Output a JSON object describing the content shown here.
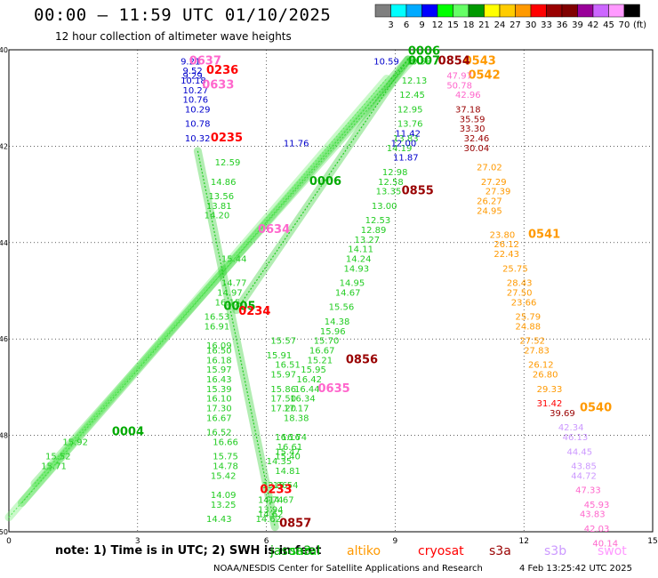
{
  "header": {
    "title": "00:00 – 11:59 UTC 01/10/2025",
    "subtitle": "12 hour collection of altimeter wave heights"
  },
  "colorbar": {
    "unit": "(ft)",
    "colors": [
      "#7f7f7f",
      "#00ffff",
      "#00aaff",
      "#0000ff",
      "#00ff00",
      "#66ff66",
      "#009900",
      "#ffff00",
      "#ffcc00",
      "#ff9900",
      "#ff0000",
      "#990000",
      "#800000",
      "#990099",
      "#cc66ff",
      "#ff99ff",
      "#000000"
    ],
    "labels": [
      "3",
      "6",
      "9",
      "12",
      "15",
      "18",
      "21",
      "24",
      "27",
      "30",
      "33",
      "36",
      "39",
      "42",
      "45",
      "70"
    ]
  },
  "legend": [
    {
      "name": "jason3",
      "color": "#00aa00"
    },
    {
      "name": "saral",
      "color": "#00cc00"
    },
    {
      "name": "altiko",
      "color": "#ff9900"
    },
    {
      "name": "cryosat",
      "color": "#ff0000"
    },
    {
      "name": "s3a",
      "color": "#990000"
    },
    {
      "name": "s3b",
      "color": "#cc99ff"
    },
    {
      "name": "swot",
      "color": "#ff99ff"
    }
  ],
  "note": "note: 1) Time is in UTC; 2) SWH is in feet",
  "credit": "NOAA/NESDIS Center for Satellite Applications and Research",
  "stamp": "4 Feb 13:25:42 UTC 2025",
  "chart_data": {
    "type": "scatter",
    "title": "00:00 – 11:59 UTC 01/10/2025",
    "subtitle": "12 hour collection of altimeter wave heights",
    "xlim": [
      0,
      15
    ],
    "ylim": [
      -50,
      -40
    ],
    "xticks": [
      "0",
      "3",
      "6",
      "9",
      "12",
      "15"
    ],
    "yticks": [
      "-40",
      "-42",
      "-44",
      "-46",
      "-48",
      "-50"
    ],
    "grid": true,
    "legend_placement": "bottom",
    "series": [
      {
        "name": "jason3",
        "color": "#00aa00",
        "points": [
          {
            "x": 9.3,
            "y": -40.1,
            "v": "0006"
          },
          {
            "x": 9.3,
            "y": -40.3,
            "v": "0007"
          },
          {
            "x": 7.0,
            "y": -42.8,
            "v": "0006"
          },
          {
            "x": 5.0,
            "y": -45.4,
            "v": "0005"
          },
          {
            "x": 2.4,
            "y": -48.0,
            "v": "0004"
          }
        ]
      },
      {
        "name": "saral",
        "color": "#22cc22",
        "points": [
          {
            "x": 9.25,
            "y": -40.3,
            "v": "10.58"
          },
          {
            "x": 9.15,
            "y": -40.7,
            "v": "12.13"
          },
          {
            "x": 9.1,
            "y": -41.0,
            "v": "12.45"
          },
          {
            "x": 9.05,
            "y": -41.3,
            "v": "12.95"
          },
          {
            "x": 9.05,
            "y": -41.6,
            "v": "13.76"
          },
          {
            "x": 8.95,
            "y": -41.9,
            "v": "13.83"
          },
          {
            "x": 8.8,
            "y": -42.1,
            "v": "14.19"
          },
          {
            "x": 8.7,
            "y": -42.6,
            "v": "12.98"
          },
          {
            "x": 8.6,
            "y": -42.8,
            "v": "12.58"
          },
          {
            "x": 8.55,
            "y": -43.0,
            "v": "13.35"
          },
          {
            "x": 8.45,
            "y": -43.3,
            "v": "13.00"
          },
          {
            "x": 8.3,
            "y": -43.6,
            "v": "12.53"
          },
          {
            "x": 8.2,
            "y": -43.8,
            "v": "12.89"
          },
          {
            "x": 8.05,
            "y": -44.0,
            "v": "13.27"
          },
          {
            "x": 7.9,
            "y": -44.2,
            "v": "14.11"
          },
          {
            "x": 7.85,
            "y": -44.4,
            "v": "14.24"
          },
          {
            "x": 7.8,
            "y": -44.6,
            "v": "14.93"
          },
          {
            "x": 7.7,
            "y": -44.9,
            "v": "14.95"
          },
          {
            "x": 7.6,
            "y": -45.1,
            "v": "14.67"
          },
          {
            "x": 7.45,
            "y": -45.4,
            "v": "15.56"
          },
          {
            "x": 7.35,
            "y": -45.7,
            "v": "14.38"
          },
          {
            "x": 7.25,
            "y": -45.9,
            "v": "15.96"
          },
          {
            "x": 7.1,
            "y": -46.1,
            "v": "15.70"
          },
          {
            "x": 7.0,
            "y": -46.3,
            "v": "16.67"
          },
          {
            "x": 6.95,
            "y": -46.5,
            "v": "15.21"
          },
          {
            "x": 6.8,
            "y": -46.7,
            "v": "15.95"
          },
          {
            "x": 6.7,
            "y": -46.9,
            "v": "16.42"
          },
          {
            "x": 6.65,
            "y": -47.1,
            "v": "16.44"
          },
          {
            "x": 6.55,
            "y": -47.3,
            "v": "16.34"
          },
          {
            "x": 6.4,
            "y": -47.5,
            "v": "17.17"
          },
          {
            "x": 6.4,
            "y": -47.7,
            "v": "18.38"
          },
          {
            "x": 6.35,
            "y": -48.1,
            "v": "16.74"
          },
          {
            "x": 6.25,
            "y": -48.3,
            "v": "16.61"
          },
          {
            "x": 6.2,
            "y": -48.5,
            "v": "15.40"
          },
          {
            "x": 6.2,
            "y": -48.8,
            "v": "14.81"
          },
          {
            "x": 6.15,
            "y": -49.1,
            "v": "15.54"
          },
          {
            "x": 6.05,
            "y": -49.4,
            "v": "14.67"
          },
          {
            "x": 5.8,
            "y": -49.6,
            "v": "13.94"
          },
          {
            "x": 5.75,
            "y": -49.8,
            "v": "14.62"
          },
          {
            "x": 4.8,
            "y": -42.4,
            "v": "12.59"
          },
          {
            "x": 4.7,
            "y": -42.8,
            "v": "14.86"
          },
          {
            "x": 4.65,
            "y": -43.1,
            "v": "13.56"
          },
          {
            "x": 4.6,
            "y": -43.3,
            "v": "13.81"
          },
          {
            "x": 4.55,
            "y": -43.5,
            "v": "14.20"
          },
          {
            "x": 4.95,
            "y": -44.4,
            "v": "15.44"
          },
          {
            "x": 4.95,
            "y": -44.9,
            "v": "14.77"
          },
          {
            "x": 4.85,
            "y": -45.1,
            "v": "14.97"
          },
          {
            "x": 4.8,
            "y": -45.3,
            "v": "16.15"
          },
          {
            "x": 4.55,
            "y": -45.6,
            "v": "16.53"
          },
          {
            "x": 4.55,
            "y": -45.8,
            "v": "16.91"
          },
          {
            "x": 4.6,
            "y": -46.2,
            "v": "16.09"
          },
          {
            "x": 4.6,
            "y": -46.3,
            "v": "16.50"
          },
          {
            "x": 4.6,
            "y": -46.5,
            "v": "16.18"
          },
          {
            "x": 4.6,
            "y": -46.7,
            "v": "15.97"
          },
          {
            "x": 4.6,
            "y": -46.9,
            "v": "16.43"
          },
          {
            "x": 4.6,
            "y": -47.1,
            "v": "15.39"
          },
          {
            "x": 4.6,
            "y": -47.3,
            "v": "16.10"
          },
          {
            "x": 4.6,
            "y": -47.5,
            "v": "17.30"
          },
          {
            "x": 4.6,
            "y": -47.7,
            "v": "16.67"
          },
          {
            "x": 4.6,
            "y": -48.0,
            "v": "16.52"
          },
          {
            "x": 4.75,
            "y": -48.2,
            "v": "16.66"
          },
          {
            "x": 4.75,
            "y": -48.5,
            "v": "15.75"
          },
          {
            "x": 4.75,
            "y": -48.7,
            "v": "14.78"
          },
          {
            "x": 4.7,
            "y": -48.9,
            "v": "15.42"
          },
          {
            "x": 4.7,
            "y": -49.3,
            "v": "14.09"
          },
          {
            "x": 4.7,
            "y": -49.5,
            "v": "13.25"
          },
          {
            "x": 4.6,
            "y": -49.8,
            "v": "14.43"
          },
          {
            "x": 6.1,
            "y": -46.1,
            "v": "15.57"
          },
          {
            "x": 6.0,
            "y": -46.4,
            "v": "15.91"
          },
          {
            "x": 6.2,
            "y": -46.6,
            "v": "16.51"
          },
          {
            "x": 6.1,
            "y": -46.8,
            "v": "15.97"
          },
          {
            "x": 6.1,
            "y": -47.1,
            "v": "15.86"
          },
          {
            "x": 6.1,
            "y": -47.3,
            "v": "17.50"
          },
          {
            "x": 6.1,
            "y": -47.5,
            "v": "17.20"
          },
          {
            "x": 6.2,
            "y": -48.1,
            "v": "16.16"
          },
          {
            "x": 6.2,
            "y": -48.4,
            "v": "15.47"
          },
          {
            "x": 6.0,
            "y": -48.6,
            "v": "14.35"
          },
          {
            "x": 5.9,
            "y": -49.1,
            "v": "13.86"
          },
          {
            "x": 5.8,
            "y": -49.4,
            "v": "14.74"
          },
          {
            "x": 5.8,
            "y": -49.7,
            "v": "14.62"
          },
          {
            "x": 0.85,
            "y": -48.5,
            "v": "15.52"
          },
          {
            "x": 0.75,
            "y": -48.7,
            "v": "15.71"
          },
          {
            "x": 1.25,
            "y": -48.2,
            "v": "15.92"
          }
        ]
      },
      {
        "name": "saral-blue",
        "color": "#0000cc",
        "points": [
          {
            "x": 4.0,
            "y": -40.3,
            "v": "9.21"
          },
          {
            "x": 4.05,
            "y": -40.5,
            "v": "9.52"
          },
          {
            "x": 4.05,
            "y": -40.6,
            "v": "9.29"
          },
          {
            "x": 4.0,
            "y": -40.7,
            "v": "10.18"
          },
          {
            "x": 4.05,
            "y": -40.9,
            "v": "10.27"
          },
          {
            "x": 4.05,
            "y": -41.1,
            "v": "10.76"
          },
          {
            "x": 4.1,
            "y": -41.3,
            "v": "10.29"
          },
          {
            "x": 4.1,
            "y": -41.6,
            "v": "10.78"
          },
          {
            "x": 4.1,
            "y": -41.9,
            "v": "10.32"
          },
          {
            "x": 9.0,
            "y": -41.8,
            "v": "11.42"
          },
          {
            "x": 8.9,
            "y": -42.0,
            "v": "12.00"
          },
          {
            "x": 8.95,
            "y": -42.3,
            "v": "11.87"
          },
          {
            "x": 6.4,
            "y": -42.0,
            "v": "11.76"
          },
          {
            "x": 8.5,
            "y": -40.3,
            "v": "10.59"
          }
        ]
      },
      {
        "name": "altiko",
        "color": "#ff9900",
        "points": [
          {
            "x": 10.6,
            "y": -40.3,
            "v": "0543"
          },
          {
            "x": 10.7,
            "y": -40.6,
            "v": "0542"
          },
          {
            "x": 12.1,
            "y": -43.9,
            "v": "0541"
          },
          {
            "x": 13.3,
            "y": -47.5,
            "v": "0540"
          },
          {
            "x": 10.9,
            "y": -42.5,
            "v": "27.02"
          },
          {
            "x": 11.0,
            "y": -42.8,
            "v": "27.29"
          },
          {
            "x": 11.1,
            "y": -43.0,
            "v": "27.39"
          },
          {
            "x": 10.9,
            "y": -43.2,
            "v": "26.27"
          },
          {
            "x": 10.9,
            "y": -43.4,
            "v": "24.95"
          },
          {
            "x": 11.2,
            "y": -43.9,
            "v": "23.80"
          },
          {
            "x": 11.3,
            "y": -44.1,
            "v": "26.12"
          },
          {
            "x": 11.3,
            "y": -44.3,
            "v": "22.43"
          },
          {
            "x": 11.5,
            "y": -44.6,
            "v": "25.75"
          },
          {
            "x": 11.6,
            "y": -44.9,
            "v": "28.43"
          },
          {
            "x": 11.6,
            "y": -45.1,
            "v": "27.50"
          },
          {
            "x": 11.7,
            "y": -45.3,
            "v": "23.66"
          },
          {
            "x": 11.8,
            "y": -45.6,
            "v": "25.79"
          },
          {
            "x": 11.8,
            "y": -45.8,
            "v": "24.88"
          },
          {
            "x": 11.9,
            "y": -46.1,
            "v": "27.52"
          },
          {
            "x": 12.0,
            "y": -46.3,
            "v": "27.83"
          },
          {
            "x": 12.1,
            "y": -46.6,
            "v": "26.12"
          },
          {
            "x": 12.2,
            "y": -46.8,
            "v": "26.80"
          },
          {
            "x": 12.3,
            "y": -47.1,
            "v": "29.33"
          }
        ]
      },
      {
        "name": "cryosat",
        "color": "#ff0000",
        "points": [
          {
            "x": 4.6,
            "y": -40.5,
            "v": "0236"
          },
          {
            "x": 4.7,
            "y": -41.9,
            "v": "0235"
          },
          {
            "x": 5.35,
            "y": -45.5,
            "v": "0234"
          },
          {
            "x": 5.85,
            "y": -49.2,
            "v": "0233"
          },
          {
            "x": 12.3,
            "y": -47.4,
            "v": "31.42"
          }
        ]
      },
      {
        "name": "s3a",
        "color": "#990000",
        "points": [
          {
            "x": 10.0,
            "y": -40.3,
            "v": "0854"
          },
          {
            "x": 9.15,
            "y": -43.0,
            "v": "0855"
          },
          {
            "x": 7.85,
            "y": -46.5,
            "v": "0856"
          },
          {
            "x": 6.3,
            "y": -49.9,
            "v": "0857"
          },
          {
            "x": 10.4,
            "y": -41.3,
            "v": "37.18"
          },
          {
            "x": 10.5,
            "y": -41.5,
            "v": "35.59"
          },
          {
            "x": 10.5,
            "y": -41.7,
            "v": "33.30"
          },
          {
            "x": 10.6,
            "y": -41.9,
            "v": "32.46"
          },
          {
            "x": 10.6,
            "y": -42.1,
            "v": "30.04"
          },
          {
            "x": 12.6,
            "y": -47.6,
            "v": "39.69"
          }
        ]
      },
      {
        "name": "s3b",
        "color": "#cc99ff",
        "points": [
          {
            "x": 12.8,
            "y": -47.9,
            "v": "42.34"
          },
          {
            "x": 12.9,
            "y": -48.1,
            "v": "46.13"
          },
          {
            "x": 13.0,
            "y": -48.4,
            "v": "44.45"
          },
          {
            "x": 13.1,
            "y": -48.7,
            "v": "43.85"
          },
          {
            "x": 13.1,
            "y": -48.9,
            "v": "44.72"
          }
        ]
      },
      {
        "name": "swot",
        "color": "#ff66cc",
        "points": [
          {
            "x": 4.2,
            "y": -40.3,
            "v": "0637"
          },
          {
            "x": 4.5,
            "y": -40.8,
            "v": "0633"
          },
          {
            "x": 5.8,
            "y": -43.8,
            "v": "0634"
          },
          {
            "x": 7.2,
            "y": -47.1,
            "v": "0635"
          },
          {
            "x": 10.2,
            "y": -40.6,
            "v": "47.97"
          },
          {
            "x": 10.2,
            "y": -40.8,
            "v": "50.78"
          },
          {
            "x": 10.4,
            "y": -41.0,
            "v": "42.96"
          },
          {
            "x": 13.2,
            "y": -49.2,
            "v": "47.33"
          },
          {
            "x": 13.4,
            "y": -49.5,
            "v": "45.93"
          },
          {
            "x": 13.3,
            "y": -49.7,
            "v": "43.83"
          },
          {
            "x": 13.4,
            "y": -50.0,
            "v": "42.03"
          },
          {
            "x": 13.6,
            "y": -50.3,
            "v": "40.14"
          }
        ]
      }
    ],
    "tracks": [
      {
        "color": "#22cc22",
        "from": [
          0.3,
          -49.4
        ],
        "to": [
          9.3,
          -40.2
        ]
      },
      {
        "color": "#44dd44",
        "from": [
          0.6,
          -49.0
        ],
        "to": [
          9.4,
          -40.2
        ]
      },
      {
        "color": "#66ee66",
        "from": [
          0.0,
          -49.7
        ],
        "to": [
          8.8,
          -40.6
        ]
      },
      {
        "color": "#22cc22",
        "from": [
          4.4,
          -42.1
        ],
        "to": [
          6.2,
          -49.9
        ]
      },
      {
        "color": "#22cc22",
        "from": [
          5.3,
          -45.4
        ],
        "to": [
          9.3,
          -40.2
        ]
      }
    ]
  }
}
